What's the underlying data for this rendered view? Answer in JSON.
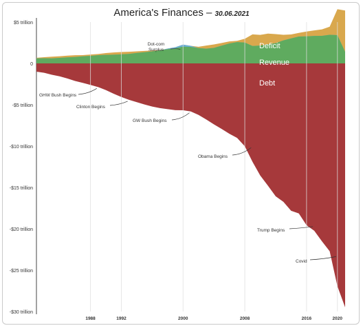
{
  "chart_data": {
    "type": "area",
    "title_main": "America's Finances",
    "title_dash": "–",
    "title_date": "30.06.2021",
    "x": [
      1981,
      1982,
      1983,
      1984,
      1985,
      1986,
      1987,
      1988,
      1989,
      1990,
      1991,
      1992,
      1993,
      1994,
      1995,
      1996,
      1997,
      1998,
      1999,
      2000,
      2001,
      2002,
      2003,
      2004,
      2005,
      2006,
      2007,
      2008,
      2009,
      2010,
      2011,
      2012,
      2013,
      2014,
      2015,
      2016,
      2017,
      2018,
      2019,
      2020,
      2021
    ],
    "series": [
      {
        "name": "Revenue",
        "values": [
          0.6,
          0.62,
          0.6,
          0.67,
          0.73,
          0.77,
          0.85,
          0.91,
          0.99,
          1.03,
          1.05,
          1.09,
          1.15,
          1.26,
          1.35,
          1.45,
          1.58,
          1.72,
          1.83,
          2.03,
          1.99,
          1.85,
          1.78,
          1.88,
          2.15,
          2.41,
          2.57,
          2.52,
          2.1,
          2.16,
          2.3,
          2.45,
          2.78,
          3.02,
          3.25,
          3.27,
          3.32,
          3.33,
          3.46,
          3.42,
          1.4
        ]
      },
      {
        "name": "Deficit",
        "values": [
          0.08,
          0.13,
          0.21,
          0.19,
          0.21,
          0.22,
          0.15,
          0.16,
          0.15,
          0.22,
          0.27,
          0.29,
          0.26,
          0.2,
          0.16,
          0.11,
          0.02,
          0,
          0,
          0,
          0,
          0.16,
          0.38,
          0.41,
          0.32,
          0.25,
          0.16,
          0.46,
          1.41,
          1.29,
          1.3,
          1.09,
          0.68,
          0.48,
          0.44,
          0.58,
          0.67,
          0.78,
          0.98,
          3.13,
          5.0
        ]
      },
      {
        "name": "Dot-com Surplus",
        "values": [
          0,
          0,
          0,
          0,
          0,
          0,
          0,
          0,
          0,
          0,
          0,
          0,
          0,
          0,
          0,
          0,
          0,
          0.07,
          0.13,
          0.24,
          0.13,
          0,
          0,
          0,
          0,
          0,
          0,
          0,
          0,
          0,
          0,
          0,
          0,
          0,
          0,
          0,
          0,
          0,
          0,
          0,
          0
        ]
      },
      {
        "name": "Debt",
        "values": [
          -1.0,
          -1.14,
          -1.37,
          -1.56,
          -1.82,
          -2.12,
          -2.35,
          -2.6,
          -2.86,
          -3.23,
          -3.67,
          -4.06,
          -4.41,
          -4.69,
          -4.97,
          -5.22,
          -5.41,
          -5.53,
          -5.66,
          -5.67,
          -5.81,
          -6.23,
          -6.78,
          -7.38,
          -7.93,
          -8.51,
          -9.01,
          -10.02,
          -11.91,
          -13.56,
          -14.79,
          -16.07,
          -16.74,
          -17.82,
          -18.15,
          -19.57,
          -20.24,
          -21.52,
          -22.72,
          -26.95,
          -29.5
        ]
      }
    ],
    "series_labels": {
      "deficit": "Deficit",
      "revenue": "Revenue",
      "debt": "Debt"
    },
    "ylim": [
      -30,
      6
    ],
    "yticks": [
      {
        "value": 5,
        "label": "$5 trillion"
      },
      {
        "value": 0,
        "label": "0"
      },
      {
        "value": -5,
        "label": "-$5 trillion"
      },
      {
        "value": -10,
        "label": "-$10 trillion"
      },
      {
        "value": -15,
        "label": "-$15 trillion"
      },
      {
        "value": -20,
        "label": "-$20 trillion"
      },
      {
        "value": -25,
        "label": "-$25 trillion"
      },
      {
        "value": -30,
        "label": "-$30 trillion"
      }
    ],
    "xticks": [
      {
        "value": 1988,
        "label": "1988"
      },
      {
        "value": 1992,
        "label": "1992"
      },
      {
        "value": 2000,
        "label": "2000"
      },
      {
        "value": 2008,
        "label": "2008"
      },
      {
        "value": 2016,
        "label": "2016"
      },
      {
        "value": 2020,
        "label": "2020"
      }
    ],
    "annotations": [
      {
        "text": "GHW Bush Begins",
        "x": 1989,
        "y": -2.86
      },
      {
        "text": "Clinton Begins",
        "x": 1993,
        "y": -4.41
      },
      {
        "text": "GW Bush Begins",
        "x": 2001,
        "y": -5.81
      },
      {
        "text": "Obama Begins",
        "x": 2009,
        "y": -10.02
      },
      {
        "text": "Trump Begins",
        "x": 2017,
        "y": -19.57
      },
      {
        "text": "Covid",
        "x": 2020,
        "y": -23.2
      },
      {
        "text": "Dot-com Surplus",
        "x": 2000,
        "y": 2.0
      }
    ],
    "colors": {
      "revenue": "#5fab5f",
      "deficit": "#d9a84d",
      "surplus": "#6aaed6",
      "debt": "#a6393b",
      "grid": "#dedede"
    },
    "grid": "vertical lines at year ticks"
  }
}
